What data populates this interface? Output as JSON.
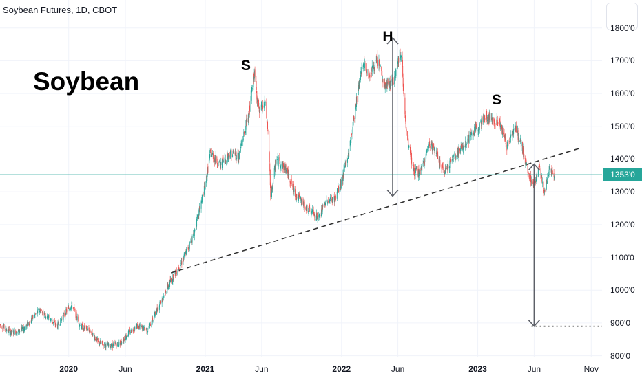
{
  "header": {
    "symbol_title": "Soybean Futures, 1D, CBOT"
  },
  "annotation": {
    "big_label": "Soybean"
  },
  "pattern_labels": {
    "left_shoulder": "S",
    "head": "H",
    "right_shoulder": "S"
  },
  "last_price": {
    "label": "1353'0",
    "value": 1353
  },
  "colors": {
    "up": "#26a69a",
    "down": "#ef5350",
    "badge": "#26a69a",
    "grid": "#f0f3fa",
    "arrow": "#5d6068",
    "neckline": "#333333"
  },
  "chart_data": {
    "type": "candlestick",
    "title": "Soybean Futures, 1D, CBOT",
    "xlabel": "",
    "ylabel": "",
    "ylim": [
      795,
      1812
    ],
    "xlim": [
      "2019-07-01",
      "2023-11-30"
    ],
    "y_ticks": [
      "800'0",
      "900'0",
      "1000'0",
      "1100'0",
      "1200'0",
      "1300'0",
      "1400'0",
      "1500'0",
      "1600'0",
      "1700'0",
      "1800'0"
    ],
    "x_ticks": [
      {
        "label": "2020",
        "date": "2020-01-01",
        "bold": true
      },
      {
        "label": "Jun",
        "date": "2020-06-01",
        "bold": false
      },
      {
        "label": "2021",
        "date": "2021-01-01",
        "bold": true
      },
      {
        "label": "Jun",
        "date": "2021-06-01",
        "bold": false
      },
      {
        "label": "2022",
        "date": "2022-01-01",
        "bold": true
      },
      {
        "label": "Jun",
        "date": "2022-06-01",
        "bold": false
      },
      {
        "label": "2023",
        "date": "2023-01-01",
        "bold": true
      },
      {
        "label": "Jun",
        "date": "2023-06-01",
        "bold": false
      },
      {
        "label": "Nov",
        "date": "2023-11-01",
        "bold": false
      }
    ],
    "price_path": [
      [
        "2019-07-01",
        895
      ],
      [
        "2019-08-01",
        870
      ],
      [
        "2019-09-01",
        880
      ],
      [
        "2019-10-15",
        940
      ],
      [
        "2019-11-10",
        915
      ],
      [
        "2019-12-01",
        890
      ],
      [
        "2019-12-31",
        945
      ],
      [
        "2020-01-10",
        955
      ],
      [
        "2020-02-01",
        890
      ],
      [
        "2020-03-01",
        875
      ],
      [
        "2020-03-20",
        840
      ],
      [
        "2020-04-20",
        830
      ],
      [
        "2020-05-20",
        840
      ],
      [
        "2020-06-10",
        870
      ],
      [
        "2020-07-01",
        890
      ],
      [
        "2020-08-01",
        880
      ],
      [
        "2020-09-01",
        960
      ],
      [
        "2020-10-01",
        1030
      ],
      [
        "2020-11-01",
        1090
      ],
      [
        "2020-12-01",
        1170
      ],
      [
        "2021-01-01",
        1320
      ],
      [
        "2021-01-15",
        1420
      ],
      [
        "2021-02-10",
        1380
      ],
      [
        "2021-03-10",
        1420
      ],
      [
        "2021-04-01",
        1410
      ],
      [
        "2021-05-01",
        1560
      ],
      [
        "2021-05-12",
        1665
      ],
      [
        "2021-05-25",
        1540
      ],
      [
        "2021-06-10",
        1570
      ],
      [
        "2021-06-20",
        1460
      ],
      [
        "2021-06-25",
        1280
      ],
      [
        "2021-07-10",
        1400
      ],
      [
        "2021-08-05",
        1370
      ],
      [
        "2021-09-01",
        1290
      ],
      [
        "2021-10-01",
        1250
      ],
      [
        "2021-11-01",
        1220
      ],
      [
        "2021-11-20",
        1270
      ],
      [
        "2021-12-15",
        1280
      ],
      [
        "2022-01-01",
        1330
      ],
      [
        "2022-01-20",
        1420
      ],
      [
        "2022-02-10",
        1580
      ],
      [
        "2022-02-25",
        1690
      ],
      [
        "2022-03-15",
        1660
      ],
      [
        "2022-04-10",
        1700
      ],
      [
        "2022-04-25",
        1620
      ],
      [
        "2022-05-20",
        1640
      ],
      [
        "2022-06-05",
        1720
      ],
      [
        "2022-06-12",
        1700
      ],
      [
        "2022-06-20",
        1530
      ],
      [
        "2022-06-25",
        1460
      ],
      [
        "2022-07-15",
        1360
      ],
      [
        "2022-08-01",
        1360
      ],
      [
        "2022-08-25",
        1450
      ],
      [
        "2022-09-10",
        1420
      ],
      [
        "2022-10-01",
        1360
      ],
      [
        "2022-10-25",
        1400
      ],
      [
        "2022-11-20",
        1435
      ],
      [
        "2022-12-20",
        1480
      ],
      [
        "2023-01-20",
        1530
      ],
      [
        "2023-02-10",
        1520
      ],
      [
        "2023-02-28",
        1515
      ],
      [
        "2023-03-20",
        1440
      ],
      [
        "2023-04-10",
        1500
      ],
      [
        "2023-04-28",
        1440
      ],
      [
        "2023-05-15",
        1360
      ],
      [
        "2023-05-31",
        1320
      ],
      [
        "2023-06-15",
        1380
      ],
      [
        "2023-06-28",
        1290
      ],
      [
        "2023-07-12",
        1370
      ],
      [
        "2023-07-25",
        1350
      ]
    ],
    "neckline": {
      "from": [
        "2020-10-01",
        1053
      ],
      "to": [
        "2023-10-01",
        1433
      ]
    },
    "head_arrow": {
      "date": "2022-05-18",
      "from": 1287,
      "to": 1770
    },
    "target_arrow": {
      "date": "2023-06-01",
      "from": 1385,
      "to": 890
    },
    "target_line": {
      "value": 890,
      "from": "2023-05-25",
      "to": "2023-11-30"
    },
    "last_price": 1353
  }
}
